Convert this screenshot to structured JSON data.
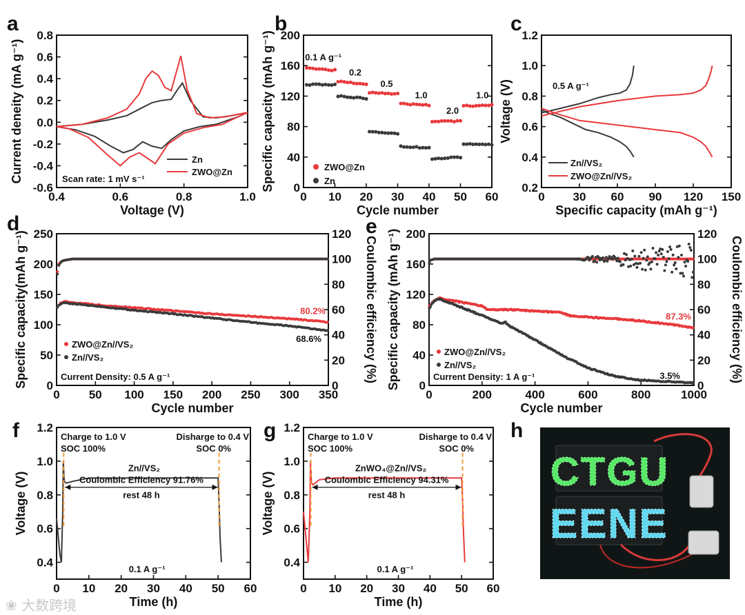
{
  "colors": {
    "red": "#e8393c",
    "black": "#3a3a3a",
    "orange": "#f19c38",
    "photo_bg": "#101615",
    "green_led": "#59e868",
    "cyan_led": "#63d8f0"
  },
  "chart_data": [
    {
      "id": "a",
      "type": "line",
      "panel_label": "a",
      "xlabel": "Voltage (V)",
      "ylabel": "Current deneity (mA g⁻¹)",
      "xlim": [
        0.4,
        1.0
      ],
      "ylim": [
        -0.6,
        0.8
      ],
      "xticks": [
        0.4,
        0.6,
        0.8,
        1.0
      ],
      "xtick_labels": [
        "0.4",
        "0.6",
        "0.8",
        "1.0"
      ],
      "yticks": [
        -0.6,
        -0.4,
        -0.2,
        0.0,
        0.2,
        0.4,
        0.6,
        0.8
      ],
      "ytick_labels": [
        "-0.6",
        "-0.4",
        "-0.2",
        "0.0",
        "0.2",
        "0.4",
        "0.6",
        "0.8"
      ],
      "annotation": "Scan rate: 1 mV s⁻¹",
      "series": [
        {
          "name": "Zn",
          "color": "#3a3a3a",
          "x": [
            0.4,
            0.48,
            0.56,
            0.62,
            0.66,
            0.7,
            0.73,
            0.76,
            0.78,
            0.795,
            0.82,
            0.86,
            0.9,
            0.95,
            1.0,
            0.97,
            0.9,
            0.85,
            0.8,
            0.76,
            0.73,
            0.7,
            0.67,
            0.64,
            0.61,
            0.57,
            0.52,
            0.46,
            0.4
          ],
          "y": [
            -0.04,
            -0.02,
            0.02,
            0.06,
            0.12,
            0.18,
            0.2,
            0.21,
            0.3,
            0.36,
            0.2,
            0.05,
            0.04,
            0.06,
            0.09,
            0.05,
            -0.02,
            -0.04,
            -0.08,
            -0.16,
            -0.24,
            -0.22,
            -0.18,
            -0.25,
            -0.28,
            -0.22,
            -0.13,
            -0.07,
            -0.04
          ]
        },
        {
          "name": "ZWO@Zn",
          "color": "#e8393c",
          "x": [
            0.4,
            0.48,
            0.56,
            0.62,
            0.66,
            0.68,
            0.7,
            0.72,
            0.74,
            0.76,
            0.78,
            0.79,
            0.81,
            0.84,
            0.88,
            0.93,
            1.0,
            0.97,
            0.92,
            0.86,
            0.8,
            0.75,
            0.71,
            0.69,
            0.66,
            0.63,
            0.6,
            0.56,
            0.5,
            0.44,
            0.4
          ],
          "y": [
            -0.04,
            -0.02,
            0.04,
            0.12,
            0.26,
            0.4,
            0.47,
            0.43,
            0.32,
            0.29,
            0.5,
            0.61,
            0.3,
            0.08,
            0.04,
            0.05,
            0.09,
            0.05,
            -0.02,
            -0.05,
            -0.1,
            -0.2,
            -0.38,
            -0.34,
            -0.28,
            -0.32,
            -0.4,
            -0.3,
            -0.14,
            -0.06,
            -0.04
          ]
        }
      ]
    },
    {
      "id": "b",
      "type": "scatter",
      "panel_label": "b",
      "xlabel": "Cycle number",
      "ylabel": "Specific capacity (mAh g⁻¹)",
      "xlim": [
        0,
        60
      ],
      "ylim": [
        0,
        200
      ],
      "xticks": [
        0,
        10,
        20,
        30,
        40,
        50,
        60
      ],
      "xtick_labels": [
        "0",
        "10",
        "20",
        "30",
        "40",
        "50",
        "60"
      ],
      "yticks": [
        0,
        40,
        80,
        120,
        160,
        200
      ],
      "ytick_labels": [
        "0",
        "40",
        "80",
        "120",
        "160",
        "200"
      ],
      "rate_labels": [
        {
          "text": "0.1 A g⁻¹",
          "x": 0.5,
          "y": 167
        },
        {
          "text": "0.2",
          "x": 14.5,
          "y": 147
        },
        {
          "text": "0.5",
          "x": 24.5,
          "y": 132
        },
        {
          "text": "1.0",
          "x": 35.5,
          "y": 117
        },
        {
          "text": "2.0",
          "x": 45.5,
          "y": 97
        },
        {
          "text": "1.0",
          "x": 55,
          "y": 117
        }
      ],
      "series": [
        {
          "name": "ZWO@Zn",
          "color": "#e8393c",
          "segments": [
            [
              1,
              10,
              157,
              154
            ],
            [
              11,
              20,
              139,
              136
            ],
            [
              21,
              30,
              125,
              123
            ],
            [
              31,
              40,
              110,
              108
            ],
            [
              41,
              50,
              87,
              87
            ],
            [
              51,
              60,
              107,
              108
            ]
          ]
        },
        {
          "name": "Zn",
          "color": "#3a3a3a",
          "segments": [
            [
              1,
              10,
              135,
              135
            ],
            [
              11,
              20,
              120,
              117
            ],
            [
              21,
              30,
              74,
              71
            ],
            [
              31,
              40,
              54,
              52
            ],
            [
              41,
              50,
              38,
              40
            ],
            [
              51,
              60,
              57,
              56
            ]
          ]
        }
      ]
    },
    {
      "id": "c",
      "type": "line",
      "panel_label": "c",
      "xlabel": "Specific capacity (mAh g⁻¹)",
      "ylabel": "Voltage (V)",
      "xlim": [
        0,
        150
      ],
      "ylim": [
        0.2,
        1.2
      ],
      "xticks": [
        0,
        30,
        60,
        90,
        120,
        150
      ],
      "xtick_labels": [
        "0",
        "30",
        "60",
        "90",
        "120",
        "150"
      ],
      "yticks": [
        0.2,
        0.4,
        0.6,
        0.8,
        1.0,
        1.2
      ],
      "ytick_labels": [
        "0.2",
        "0.4",
        "0.6",
        "0.8",
        "1.0",
        "1.2"
      ],
      "annotation": "0.5 A g⁻¹",
      "series": [
        {
          "name": "Zn//VS₂ charge",
          "color": "#3a3a3a",
          "x": [
            0,
            5,
            15,
            30,
            45,
            55,
            62,
            67,
            70,
            72,
            73
          ],
          "y": [
            0.69,
            0.7,
            0.72,
            0.75,
            0.79,
            0.81,
            0.82,
            0.84,
            0.88,
            0.94,
            1.0
          ]
        },
        {
          "name": "Zn//VS₂ discharge",
          "color": "#3a3a3a",
          "x": [
            0,
            5,
            15,
            25,
            35,
            45,
            55,
            62,
            67,
            70,
            73
          ],
          "y": [
            0.71,
            0.69,
            0.66,
            0.62,
            0.58,
            0.56,
            0.53,
            0.5,
            0.47,
            0.44,
            0.4
          ]
        },
        {
          "name": "ZWO@Zn//VS₂ charge",
          "color": "#e8393c",
          "x": [
            0,
            10,
            30,
            60,
            90,
            110,
            120,
            126,
            130,
            132,
            134,
            135
          ],
          "y": [
            0.67,
            0.69,
            0.73,
            0.77,
            0.8,
            0.81,
            0.82,
            0.84,
            0.87,
            0.91,
            0.96,
            1.0
          ]
        },
        {
          "name": "ZWO@Zn//VS₂ discharge",
          "color": "#e8393c",
          "x": [
            0,
            10,
            30,
            60,
            90,
            110,
            120,
            126,
            130,
            133,
            135
          ],
          "y": [
            0.72,
            0.69,
            0.64,
            0.61,
            0.58,
            0.56,
            0.53,
            0.5,
            0.47,
            0.43,
            0.4
          ]
        }
      ]
    },
    {
      "id": "d",
      "type": "scatter",
      "panel_label": "d",
      "xlabel": "Cycle number",
      "ylabel": "Specific capacity(mAh g⁻¹)",
      "ylabel_right": "Coulombic efficiency (%)",
      "xlim": [
        0,
        350
      ],
      "ylim": [
        0,
        250
      ],
      "ylim_right": [
        0,
        120
      ],
      "xticks": [
        0,
        50,
        100,
        150,
        200,
        250,
        300,
        350
      ],
      "xtick_labels": [
        "0",
        "50",
        "100",
        "150",
        "200",
        "250",
        "300",
        "350"
      ],
      "yticks": [
        0,
        50,
        100,
        150,
        200,
        250
      ],
      "ytick_labels": [
        "0",
        "50",
        "100",
        "150",
        "200",
        "250"
      ],
      "yticks_right": [
        0,
        20,
        40,
        60,
        80,
        100,
        120
      ],
      "ytick_labels_right": [
        "0",
        "20",
        "40",
        "60",
        "80",
        "100",
        "120"
      ],
      "annotation": "Current Density: 0.5 A g⁻¹",
      "retention_labels": [
        "80.2%",
        "68.6%"
      ],
      "series": [
        {
          "name": "ZWO@Zn//VS₂",
          "color": "#e8393c",
          "capacity": {
            "x": [
              1,
              5,
              10,
              50,
              100,
              150,
              200,
              250,
              300,
              350
            ],
            "y": [
              128,
              136,
              138,
              133,
              128,
              123,
              118,
              114,
              110,
              104
            ]
          },
          "ce": {
            "x": [
              1,
              3,
              6,
              10,
              20,
              350
            ],
            "y": [
              90,
              96,
              98,
              99,
              100,
              100
            ]
          }
        },
        {
          "name": "Zn//VS₂",
          "color": "#3a3a3a",
          "capacity": {
            "x": [
              1,
              5,
              10,
              50,
              100,
              150,
              200,
              250,
              300,
              350
            ],
            "y": [
              129,
              134,
              136,
              131,
              124,
              118,
              111,
              104,
              98,
              90
            ]
          },
          "ce": {
            "x": [
              1,
              3,
              6,
              10,
              20,
              350
            ],
            "y": [
              88,
              95,
              98,
              99,
              100,
              100
            ]
          }
        }
      ]
    },
    {
      "id": "e",
      "type": "scatter",
      "panel_label": "e",
      "xlabel": "Cycle number",
      "ylabel": "Specific capacity (mAh g⁻¹)",
      "ylabel_right": "Coulombic efficiency (%)",
      "xlim": [
        0,
        1000
      ],
      "ylim": [
        0,
        200
      ],
      "ylim_right": [
        0,
        120
      ],
      "xticks": [
        0,
        200,
        400,
        600,
        800,
        1000
      ],
      "xtick_labels": [
        "0",
        "200",
        "400",
        "600",
        "800",
        "1000"
      ],
      "yticks": [
        0,
        40,
        80,
        120,
        160,
        200
      ],
      "ytick_labels": [
        "0",
        "40",
        "80",
        "120",
        "160",
        "200"
      ],
      "yticks_right": [
        0,
        20,
        40,
        60,
        80,
        100,
        120
      ],
      "ytick_labels_right": [
        "0",
        "20",
        "40",
        "60",
        "80",
        "100",
        "120"
      ],
      "annotation": "Current Density: 1 A g⁻¹",
      "retention_labels": [
        "87.3%",
        "3.5%"
      ],
      "series": [
        {
          "name": "ZWO@Zn//VS₂",
          "color": "#e8393c",
          "capacity": {
            "x": [
              1,
              20,
              40,
              100,
              200,
              220,
              300,
              400,
              500,
              530,
              600,
              700,
              800,
              900,
              1000
            ],
            "y": [
              104,
              112,
              115,
              111,
              105,
              100,
              100,
              98,
              96,
              92,
              90,
              88,
              85,
              81,
              76
            ]
          },
          "ce": {
            "x": [
              1,
              5,
              20,
              1000
            ],
            "y": [
              97,
              99,
              100,
              100
            ]
          }
        },
        {
          "name": "Zn//VS₂",
          "color": "#3a3a3a",
          "capacity": {
            "x": [
              1,
              20,
              40,
              100,
              200,
              270,
              290,
              300,
              400,
              500,
              600,
              700,
              800,
              900,
              1000
            ],
            "y": [
              102,
              112,
              114,
              106,
              92,
              82,
              83,
              79,
              60,
              40,
              23,
              12,
              7,
              5,
              3
            ]
          },
          "ce": {
            "x": [
              1,
              5,
              20,
              1000
            ],
            "y": [
              97,
              99,
              100,
              100
            ]
          }
        }
      ]
    },
    {
      "id": "f",
      "type": "line",
      "panel_label": "f",
      "xlabel": "Time (h)",
      "ylabel": "Voltage (V)",
      "xlim": [
        0,
        60
      ],
      "ylim": [
        0.3,
        1.2
      ],
      "xticks": [
        0,
        10,
        20,
        30,
        40,
        50,
        60
      ],
      "xtick_labels": [
        "0",
        "10",
        "20",
        "30",
        "40",
        "50",
        "60"
      ],
      "yticks": [
        0.4,
        0.6,
        0.8,
        1.0,
        1.2
      ],
      "ytick_labels": [
        "0.4",
        "0.6",
        "0.8",
        "1.0",
        "1.2"
      ],
      "labels": {
        "charge": "Charge to 1.0 V",
        "soc_full": "SOC 100%",
        "discharge": "Disharge to 0.4 V",
        "soc_empty": "SOC 0%",
        "cell": "Zn//VS₂",
        "ce": "Coulombic Efficiency  91.76%",
        "rest": "rest 48 h",
        "current": "0.1 A g⁻¹"
      },
      "markers": [
        2.2,
        50.3
      ],
      "series": [
        {
          "name": "Zn//VS₂",
          "color": "#3a3a3a",
          "x": [
            0,
            0.5,
            1,
            1.5,
            1.9,
            2.1,
            2.4,
            3,
            5,
            10,
            20,
            30,
            40,
            50,
            50.3,
            50.6,
            51
          ],
          "y": [
            0.66,
            0.56,
            0.45,
            0.4,
            0.7,
            1.0,
            0.88,
            0.87,
            0.88,
            0.9,
            0.9,
            0.9,
            0.9,
            0.9,
            0.75,
            0.55,
            0.4
          ]
        }
      ]
    },
    {
      "id": "g",
      "type": "line",
      "panel_label": "g",
      "xlabel": "Time (h)",
      "ylabel": "Voltage (V)",
      "xlim": [
        0,
        60
      ],
      "ylim": [
        0.3,
        1.2
      ],
      "xticks": [
        0,
        10,
        20,
        30,
        40,
        50,
        60
      ],
      "xtick_labels": [
        "0",
        "10",
        "20",
        "30",
        "40",
        "50",
        "60"
      ],
      "yticks": [
        0.4,
        0.6,
        0.8,
        1.0,
        1.2
      ],
      "ytick_labels": [
        "0.4",
        "0.6",
        "0.8",
        "1.0",
        "1.2"
      ],
      "labels": {
        "charge": "Charge to 1.0 V",
        "soc_full": "SOC 100%",
        "discharge": "Disharge to 0.4 V",
        "soc_empty": "SOC 0%",
        "cell": "ZnWO₄@Zn//VS₂",
        "ce": "Coulombic Efficiency  94.31%",
        "rest": "rest 48 h",
        "current": "0.1 A g⁻¹"
      },
      "markers": [
        2.3,
        50.3
      ],
      "series": [
        {
          "name": "ZnWO₄@Zn//VS₂",
          "color": "#e8393c",
          "x": [
            0,
            0.5,
            1,
            1.5,
            2,
            2.2,
            2.5,
            3,
            5,
            10,
            20,
            30,
            40,
            50,
            50.3,
            50.6,
            51
          ],
          "y": [
            0.7,
            0.6,
            0.5,
            0.4,
            0.7,
            1.0,
            0.87,
            0.86,
            0.89,
            0.9,
            0.9,
            0.9,
            0.9,
            0.9,
            0.78,
            0.58,
            0.4
          ]
        }
      ]
    }
  ],
  "photo": {
    "panel_label": "h",
    "line1": "CTGU",
    "line2": "EENE"
  },
  "watermark": "❀ 大数跨境"
}
